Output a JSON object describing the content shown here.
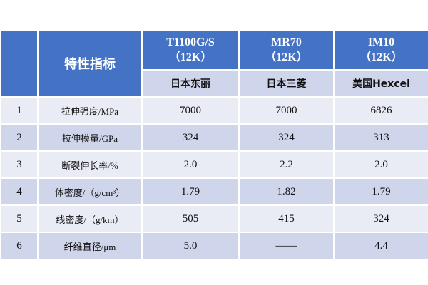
{
  "header": {
    "property_label": "特性指标",
    "products": [
      {
        "name": "T1100G/S",
        "spec": "（12K）",
        "maker": "日本东丽"
      },
      {
        "name": "MR70",
        "spec": "（12K）",
        "maker": "日本三菱"
      },
      {
        "name": "IM10",
        "spec": "（12K）",
        "maker": "美国Hexcel"
      }
    ]
  },
  "rows": [
    {
      "no": "1",
      "property": "拉伸强度/MPa",
      "values": [
        "7000",
        "7000",
        "6826"
      ]
    },
    {
      "no": "2",
      "property": "拉伸模量/GPa",
      "values": [
        "324",
        "324",
        "313"
      ]
    },
    {
      "no": "3",
      "property": "断裂伸长率/%",
      "values": [
        "2.0",
        "2.2",
        "2.0"
      ]
    },
    {
      "no": "4",
      "property": "体密度/（g/cm³）",
      "values": [
        "1.79",
        "1.82",
        "1.79"
      ]
    },
    {
      "no": "5",
      "property": "线密度/（g/km）",
      "values": [
        "505",
        "415",
        "324"
      ]
    },
    {
      "no": "6",
      "property": "纤维直径/μm",
      "values": [
        "5.0",
        "——",
        "4.4"
      ]
    }
  ],
  "colors": {
    "header": "#4472C4",
    "band_dark": "#CFD5EA",
    "band_light": "#E9EBF5"
  }
}
